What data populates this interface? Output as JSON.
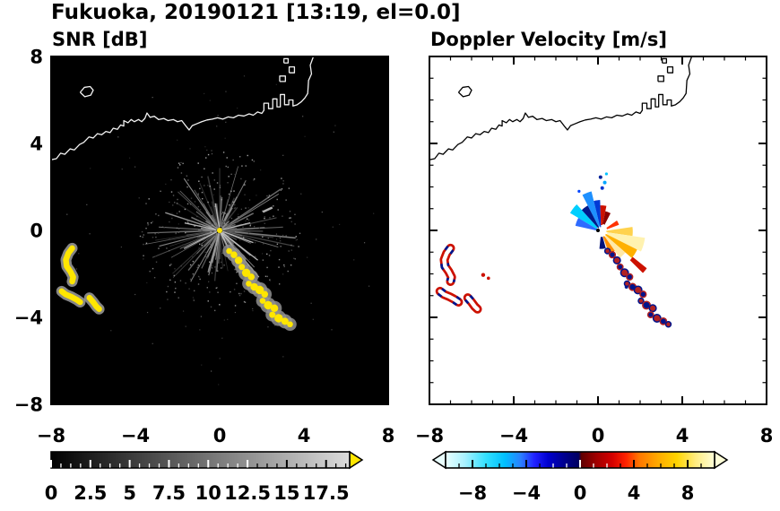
{
  "title": "Fukuoka, 20190121 [13:19, el=0.0]",
  "panels": {
    "left": {
      "title": "SNR [dB]"
    },
    "right": {
      "title": "Doppler Velocity [m/s]"
    }
  },
  "chart_shared": {
    "coastline": [
      [
        [
          -8,
          3.25
        ],
        [
          -7.75,
          3.3
        ],
        [
          -7.55,
          3.55
        ],
        [
          -7.35,
          3.5
        ],
        [
          -7.1,
          3.75
        ],
        [
          -6.9,
          3.7
        ],
        [
          -6.65,
          3.95
        ],
        [
          -6.45,
          4.05
        ],
        [
          -6.2,
          4.3
        ],
        [
          -6.0,
          4.25
        ],
        [
          -5.8,
          4.45
        ],
        [
          -5.6,
          4.4
        ],
        [
          -5.4,
          4.55
        ],
        [
          -5.2,
          4.5
        ],
        [
          -5.05,
          4.7
        ],
        [
          -4.85,
          4.65
        ],
        [
          -4.7,
          4.85
        ],
        [
          -4.55,
          4.8
        ],
        [
          -4.55,
          5.05
        ],
        [
          -4.35,
          4.95
        ],
        [
          -4.2,
          5.1
        ],
        [
          -4.05,
          5.0
        ],
        [
          -3.85,
          5.1
        ],
        [
          -3.7,
          5.0
        ],
        [
          -3.55,
          5.15
        ],
        [
          -3.45,
          5.4
        ],
        [
          -3.3,
          5.2
        ],
        [
          -3.1,
          5.25
        ],
        [
          -2.9,
          5.1
        ],
        [
          -2.65,
          5.15
        ],
        [
          -2.45,
          5.05
        ],
        [
          -2.2,
          5.1
        ],
        [
          -2.0,
          5.0
        ],
        [
          -1.8,
          5.05
        ],
        [
          -1.6,
          4.8
        ],
        [
          -1.45,
          4.62
        ],
        [
          -1.3,
          4.82
        ],
        [
          -1.1,
          4.9
        ],
        [
          -0.85,
          5.0
        ],
        [
          -0.6,
          5.08
        ],
        [
          -0.35,
          5.12
        ],
        [
          -0.1,
          5.18
        ],
        [
          0.15,
          5.12
        ],
        [
          0.4,
          5.22
        ],
        [
          0.65,
          5.18
        ],
        [
          0.9,
          5.3
        ],
        [
          1.15,
          5.26
        ],
        [
          1.4,
          5.36
        ],
        [
          1.6,
          5.3
        ],
        [
          1.8,
          5.45
        ],
        [
          2.0,
          5.38
        ],
        [
          2.1,
          5.52
        ],
        [
          2.1,
          5.85
        ],
        [
          2.32,
          5.85
        ],
        [
          2.32,
          5.6
        ],
        [
          2.52,
          5.6
        ],
        [
          2.52,
          6.05
        ],
        [
          2.72,
          6.05
        ],
        [
          2.72,
          5.68
        ],
        [
          2.88,
          5.68
        ],
        [
          2.88,
          6.25
        ],
        [
          3.08,
          6.25
        ],
        [
          3.08,
          5.78
        ],
        [
          3.28,
          5.78
        ],
        [
          3.28,
          6.0
        ],
        [
          3.48,
          6.0
        ],
        [
          3.48,
          5.72
        ],
        [
          3.68,
          5.78
        ],
        [
          3.88,
          5.92
        ],
        [
          4.05,
          6.1
        ],
        [
          4.18,
          6.3
        ],
        [
          4.22,
          6.9
        ],
        [
          4.36,
          7.2
        ],
        [
          4.3,
          7.6
        ],
        [
          4.45,
          8.0
        ]
      ],
      [
        [
          -6.62,
          6.35
        ],
        [
          -6.42,
          6.58
        ],
        [
          -6.15,
          6.62
        ],
        [
          -6.0,
          6.45
        ],
        [
          -6.12,
          6.22
        ],
        [
          -6.4,
          6.15
        ],
        [
          -6.62,
          6.35
        ]
      ],
      [
        [
          2.85,
          6.85
        ],
        [
          2.85,
          7.1
        ],
        [
          3.12,
          7.1
        ],
        [
          3.12,
          6.85
        ],
        [
          2.85,
          6.85
        ]
      ],
      [
        [
          3.3,
          7.25
        ],
        [
          3.3,
          7.52
        ],
        [
          3.55,
          7.52
        ],
        [
          3.55,
          7.25
        ],
        [
          3.3,
          7.25
        ]
      ],
      [
        [
          3.05,
          7.7
        ],
        [
          3.05,
          7.9
        ],
        [
          3.25,
          7.9
        ],
        [
          3.25,
          7.7
        ],
        [
          3.05,
          7.7
        ]
      ]
    ],
    "echo_chain": [
      [
        0.45,
        -0.95,
        0.14
      ],
      [
        0.68,
        -1.12,
        0.16
      ],
      [
        0.9,
        -1.38,
        0.18
      ],
      [
        1.05,
        -1.68,
        0.15
      ],
      [
        1.26,
        -1.95,
        0.2
      ],
      [
        1.5,
        -2.14,
        0.16
      ],
      [
        1.38,
        -2.45,
        0.14
      ],
      [
        1.64,
        -2.6,
        0.18
      ],
      [
        1.9,
        -2.74,
        0.2
      ],
      [
        2.14,
        -2.94,
        0.16
      ],
      [
        2.04,
        -3.24,
        0.14
      ],
      [
        2.3,
        -3.44,
        0.2
      ],
      [
        2.6,
        -3.58,
        0.18
      ],
      [
        2.5,
        -3.88,
        0.15
      ],
      [
        2.8,
        -4.04,
        0.2
      ],
      [
        3.1,
        -4.18,
        0.17
      ],
      [
        3.34,
        -4.32,
        0.14
      ]
    ],
    "west_blobs": [
      [
        [
          -7.0,
          -0.82
        ],
        [
          -7.18,
          -1.05
        ],
        [
          -7.3,
          -1.35
        ],
        [
          -7.26,
          -1.65
        ],
        [
          -7.08,
          -1.9
        ],
        [
          -6.95,
          -2.15
        ],
        [
          -7.0,
          -2.35
        ]
      ],
      [
        [
          -7.5,
          -2.8
        ],
        [
          -7.3,
          -2.95
        ],
        [
          -7.05,
          -3.05
        ],
        [
          -6.8,
          -3.18
        ],
        [
          -6.62,
          -3.3
        ]
      ],
      [
        [
          -6.18,
          -3.1
        ],
        [
          -6.0,
          -3.3
        ],
        [
          -5.85,
          -3.5
        ],
        [
          -5.72,
          -3.62
        ]
      ]
    ],
    "chain_doppler_colors": [
      "#b22222",
      "#00148c"
    ]
  },
  "chart_data": [
    {
      "type": "heatmap",
      "name": "snr",
      "title": "SNR [dB]",
      "xlim": [
        -8,
        8
      ],
      "ylim": [
        -8,
        8
      ],
      "xticks": [
        -8,
        -4,
        0,
        4,
        8
      ],
      "yticks": [
        -8,
        -4,
        0,
        4,
        8
      ],
      "xtick_labels": [
        "−8",
        "−4",
        "0",
        "4",
        "8"
      ],
      "ytick_labels": [
        "−8",
        "−4",
        "0",
        "4",
        "8"
      ],
      "background": "#000000",
      "coastline_color": "#f2f2f2",
      "radar_center": [
        0,
        0
      ],
      "high_snr_color": "#ffe600",
      "clutter": {
        "seed": 42,
        "ray_count": 160,
        "speckle_count": 260,
        "noise_count": 150,
        "max_radius": 3.6
      },
      "bright_streaks": [
        {
          "angle_deg": -50,
          "length": 2.9
        },
        {
          "angle_deg": -38,
          "length": 2.3
        },
        {
          "angle_deg": -63,
          "length": 2.0
        },
        {
          "angle_deg": -20,
          "length": 1.7
        },
        {
          "angle_deg": 14,
          "length": 1.5
        },
        {
          "angle_deg": 99,
          "length": 1.3
        },
        {
          "angle_deg": 168,
          "length": 1.7
        },
        {
          "angle_deg": 207,
          "length": 1.9
        }
      ],
      "isolated_echo": {
        "from": [
          2.05,
          0.85
        ],
        "to": [
          2.5,
          1.05
        ]
      },
      "colorbar": {
        "range": [
          0,
          19
        ],
        "labels": [
          "0",
          "2.5",
          "5",
          "7.5",
          "10",
          "12.5",
          "15",
          "17.5"
        ],
        "label_values": [
          0,
          2.5,
          5,
          7.5,
          10,
          12.5,
          15,
          17.5
        ],
        "minor_step": 0.625,
        "gradient": [
          [
            "0%",
            "#000000"
          ],
          [
            "100%",
            "#dcdcdc"
          ]
        ],
        "over_arrow": "#ffe600"
      }
    },
    {
      "type": "heatmap",
      "name": "doppler",
      "title": "Doppler Velocity [m/s]",
      "xlim": [
        -8,
        8
      ],
      "ylim": [
        -8,
        8
      ],
      "xticks": [
        -8,
        -4,
        0,
        4,
        8
      ],
      "yticks": [
        -8,
        -4,
        0,
        4,
        8
      ],
      "xtick_labels": [
        "−8",
        "−4",
        "0",
        "4",
        "8"
      ],
      "ytick_labels": [
        "−8",
        "−4",
        "0",
        "4",
        "8"
      ],
      "background": "#ffffff",
      "coastline_color": "#000000",
      "fan_center": [
        0.15,
        -0.05
      ],
      "velocity_fan": [
        {
          "a0": 150,
          "a1": 168,
          "r0": 0.2,
          "r1": 1.25,
          "color": "#2e6bff"
        },
        {
          "a0": 133,
          "a1": 150,
          "r0": 0.25,
          "r1": 1.7,
          "color": "#00cfff"
        },
        {
          "a0": 118,
          "a1": 133,
          "r0": 0.2,
          "r1": 1.35,
          "color": "#001a8c"
        },
        {
          "a0": 104,
          "a1": 118,
          "r0": 0.25,
          "r1": 1.9,
          "color": "#1e90ff"
        },
        {
          "a0": 92,
          "a1": 104,
          "r0": 0.2,
          "r1": 1.45,
          "color": "#0039d6"
        },
        {
          "a0": 78,
          "a1": 92,
          "r0": 0.3,
          "r1": 1.2,
          "color": "#cc1100"
        },
        {
          "a0": 62,
          "a1": 78,
          "r0": 0.35,
          "r1": 0.95,
          "color": "#8b0000"
        },
        {
          "a0": -8,
          "a1": 8,
          "r0": 0.25,
          "r1": 1.5,
          "color": "#ffd24d"
        },
        {
          "a0": -26,
          "a1": -8,
          "r0": 0.3,
          "r1": 2.1,
          "color": "#fff2b0"
        },
        {
          "a0": -40,
          "a1": -26,
          "r0": 0.25,
          "r1": 1.9,
          "color": "#ffb000"
        },
        {
          "a0": -54,
          "a1": -40,
          "r0": 0.3,
          "r1": 1.5,
          "color": "#ffe9a8"
        },
        {
          "a0": -70,
          "a1": -54,
          "r0": 0.25,
          "r1": 1.1,
          "color": "#ff8c00"
        },
        {
          "a0": -96,
          "a1": -74,
          "r0": 0.25,
          "r1": 0.8,
          "color": "#00127a"
        },
        {
          "a0": -44,
          "a1": -38,
          "r0": 1.9,
          "r1": 2.75,
          "color": "#cc1100"
        },
        {
          "a0": 20,
          "a1": 34,
          "r0": 0.3,
          "r1": 0.9,
          "color": "#ff3300"
        }
      ],
      "fan_dots": [
        {
          "x": 0.2,
          "y": 1.95,
          "color": "#0033cc",
          "r": 2
        },
        {
          "x": 0.32,
          "y": 2.2,
          "color": "#00a6ff",
          "r": 2
        },
        {
          "x": 0.12,
          "y": 2.45,
          "color": "#002299",
          "r": 2
        },
        {
          "x": 0.4,
          "y": 2.6,
          "color": "#00c3ff",
          "r": 1.6
        },
        {
          "x": -0.9,
          "y": 1.8,
          "color": "#0044ff",
          "r": 1.6
        },
        {
          "x": 1.35,
          "y": -2.6,
          "color": "#001a8c",
          "r": 2
        },
        {
          "x": -5.45,
          "y": -2.05,
          "color": "#cc1100",
          "r": 2.2
        },
        {
          "x": -5.2,
          "y": -2.2,
          "color": "#cc1100",
          "r": 1.8
        }
      ],
      "colorbar": {
        "range": [
          -10,
          10
        ],
        "labels": [
          "−8",
          "−4",
          "0",
          "4",
          "8"
        ],
        "label_values": [
          -8,
          -4,
          0,
          4,
          8
        ],
        "minor_step": 1,
        "gradient": [
          [
            "0%",
            "#eaffff"
          ],
          [
            "7%",
            "#aaf2ff"
          ],
          [
            "15%",
            "#33e0ff"
          ],
          [
            "22%",
            "#00c0ff"
          ],
          [
            "28%",
            "#2b7fff"
          ],
          [
            "33%",
            "#2222ff"
          ],
          [
            "38%",
            "#0000d0"
          ],
          [
            "44%",
            "#000090"
          ],
          [
            "49.5%",
            "#000060"
          ],
          [
            "50.5%",
            "#600000"
          ],
          [
            "56%",
            "#a00000"
          ],
          [
            "62%",
            "#d40000"
          ],
          [
            "67%",
            "#ff2200"
          ],
          [
            "72%",
            "#ff7700"
          ],
          [
            "79%",
            "#ffaa00"
          ],
          [
            "86%",
            "#ffd400"
          ],
          [
            "93%",
            "#ffec80"
          ],
          [
            "100%",
            "#ffffd8"
          ]
        ],
        "under_arrow": "#eaffff",
        "over_arrow": "#ffffd8"
      }
    }
  ]
}
